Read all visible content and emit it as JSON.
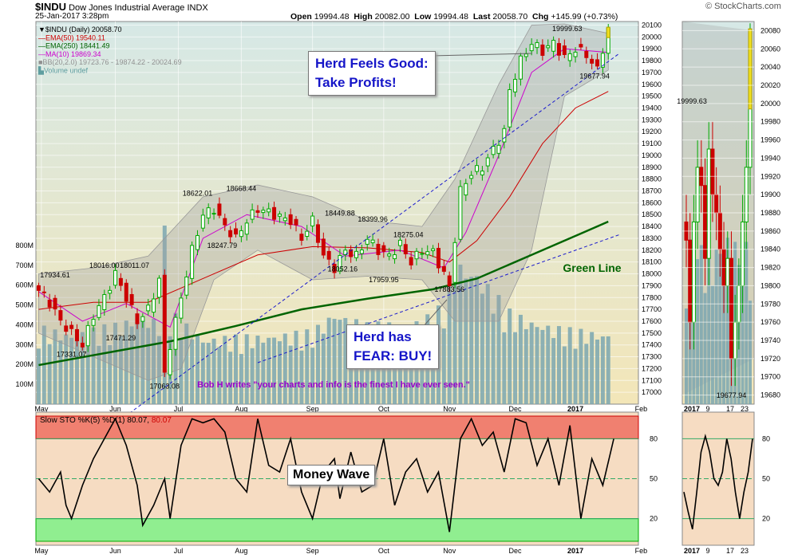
{
  "header": {
    "symbol": "$INDU",
    "name": "Dow Jones Industrial Average",
    "exchange": "INDX",
    "datetime": "25-Jan-2017 3:28pm",
    "open_label": "Open",
    "open": "19994.48",
    "high_label": "High",
    "high": "20082.00",
    "low_label": "Low",
    "low": "19994.48",
    "last_label": "Last",
    "last": "20058.70",
    "chg_label": "Chg",
    "chg": "+145.99 (+0.73%)",
    "source": "© StockCharts.com"
  },
  "legend": [
    {
      "text": "▼$INDU (Daily) 20058.70",
      "color": "#000000"
    },
    {
      "text": "—EMA(50) 19540.11",
      "color": "#cc0000"
    },
    {
      "text": "—EMA(250) 18441.49",
      "color": "#006400"
    },
    {
      "text": "—MA(10) 19869.34",
      "color": "#cc00cc"
    },
    {
      "text": "■BB(20,2.0) 19723.76 - 19874.22 - 20024.69",
      "color": "#909090"
    },
    {
      "text": "▙Volume undef",
      "color": "#5f9ea0"
    }
  ],
  "annotations": {
    "herd_good_line1": "Herd Feels Good:",
    "herd_good_line2": "Take Profits!",
    "herd_fear_line1": "Herd has",
    "herd_fear_line2": "FEAR: BUY!",
    "green_line": "Green Line",
    "money_wave": "Money Wave",
    "testimonial": "Bob H writes \"your charts and info is the finest I have ever seen.\""
  },
  "sto_legend": {
    "prefix": "Slow STO %K(5) %D(1) ",
    "k": "80.07",
    "d": "80.07"
  },
  "colors": {
    "up": "#00aa00",
    "down": "#cc0000",
    "ema50": "#cc0000",
    "ema250": "#006400",
    "ma10": "#cc00cc",
    "bb": "#909090",
    "volume": "#7aa6b0",
    "trend": "#1a1acc",
    "callout_text": "#1515c8",
    "testimonial": "#9900cc",
    "sto_overbought": "#f08070",
    "sto_oversold": "#90ee90"
  },
  "chart_data": {
    "type": "candlestick",
    "ylim": [
      16900,
      20130
    ],
    "y_ticks": [
      17000,
      17100,
      17200,
      17300,
      17400,
      17500,
      17600,
      17700,
      17800,
      17900,
      18000,
      18100,
      18200,
      18300,
      18400,
      18500,
      18600,
      18700,
      18800,
      18900,
      19000,
      19100,
      19200,
      19300,
      19400,
      19500,
      19600,
      19700,
      19800,
      19900,
      20000,
      20100
    ],
    "x_month_labels": [
      {
        "label": "May",
        "t": 0.5
      },
      {
        "label": "Jun",
        "t": 14
      },
      {
        "label": "Jul",
        "t": 25.5
      },
      {
        "label": "Aug",
        "t": 37
      },
      {
        "label": "Sep",
        "t": 50
      },
      {
        "label": "Oct",
        "t": 63
      },
      {
        "label": "Nov",
        "t": 75
      },
      {
        "label": "Dec",
        "t": 87
      },
      {
        "label": "2017",
        "t": 98,
        "bold": true
      },
      {
        "label": "Feb",
        "t": 110
      }
    ],
    "close_series": [
      [
        0,
        17860
      ],
      [
        2,
        17760
      ],
      [
        4,
        17600
      ],
      [
        6,
        17500
      ],
      [
        8,
        17400
      ],
      [
        10,
        17650
      ],
      [
        12,
        17800
      ],
      [
        14,
        18000
      ],
      [
        16,
        17800
      ],
      [
        18,
        17600
      ],
      [
        20,
        17700
      ],
      [
        22,
        17950
      ],
      [
        23,
        17150
      ],
      [
        24,
        17400
      ],
      [
        26,
        17800
      ],
      [
        28,
        18200
      ],
      [
        30,
        18500
      ],
      [
        32,
        18550
      ],
      [
        34,
        18400
      ],
      [
        36,
        18300
      ],
      [
        38,
        18450
      ],
      [
        40,
        18550
      ],
      [
        42,
        18520
      ],
      [
        44,
        18480
      ],
      [
        46,
        18450
      ],
      [
        48,
        18300
      ],
      [
        50,
        18450
      ],
      [
        52,
        18150
      ],
      [
        54,
        18050
      ],
      [
        56,
        18200
      ],
      [
        58,
        18150
      ],
      [
        60,
        18300
      ],
      [
        62,
        18200
      ],
      [
        64,
        18150
      ],
      [
        66,
        18250
      ],
      [
        68,
        18100
      ],
      [
        70,
        18200
      ],
      [
        72,
        18180
      ],
      [
        74,
        18000
      ],
      [
        75,
        17888
      ],
      [
        76,
        18300
      ],
      [
        77,
        18700
      ],
      [
        79,
        18850
      ],
      [
        81,
        18900
      ],
      [
        83,
        19050
      ],
      [
        85,
        19200
      ],
      [
        86,
        19550
      ],
      [
        88,
        19800
      ],
      [
        90,
        19950
      ],
      [
        92,
        19880
      ],
      [
        94,
        19950
      ],
      [
        96,
        19820
      ],
      [
        98,
        19900
      ],
      [
        100,
        19850
      ],
      [
        102,
        19720
      ],
      [
        103,
        19900
      ],
      [
        104,
        20058
      ]
    ],
    "ema50": [
      [
        0,
        17700
      ],
      [
        10,
        17760
      ],
      [
        20,
        17760
      ],
      [
        30,
        17960
      ],
      [
        40,
        18160
      ],
      [
        50,
        18230
      ],
      [
        60,
        18220
      ],
      [
        70,
        18180
      ],
      [
        75,
        18100
      ],
      [
        80,
        18280
      ],
      [
        86,
        18650
      ],
      [
        92,
        19100
      ],
      [
        98,
        19400
      ],
      [
        104,
        19540
      ]
    ],
    "ema250": [
      [
        0,
        17230
      ],
      [
        12,
        17330
      ],
      [
        24,
        17430
      ],
      [
        36,
        17560
      ],
      [
        48,
        17700
      ],
      [
        60,
        17790
      ],
      [
        72,
        17870
      ],
      [
        80,
        17960
      ],
      [
        90,
        18160
      ],
      [
        100,
        18360
      ],
      [
        104,
        18441
      ]
    ],
    "ma10": [
      [
        0,
        17850
      ],
      [
        8,
        17600
      ],
      [
        16,
        17750
      ],
      [
        22,
        17600
      ],
      [
        24,
        17550
      ],
      [
        30,
        18300
      ],
      [
        38,
        18500
      ],
      [
        48,
        18400
      ],
      [
        56,
        18150
      ],
      [
        66,
        18200
      ],
      [
        74,
        18050
      ],
      [
        78,
        18350
      ],
      [
        84,
        19000
      ],
      [
        90,
        19700
      ],
      [
        96,
        19900
      ],
      [
        104,
        19869
      ]
    ],
    "bb_upper": [
      [
        0,
        18000
      ],
      [
        10,
        18050
      ],
      [
        20,
        18150
      ],
      [
        30,
        18650
      ],
      [
        40,
        18750
      ],
      [
        50,
        18650
      ],
      [
        60,
        18450
      ],
      [
        70,
        18400
      ],
      [
        76,
        18800
      ],
      [
        84,
        19600
      ],
      [
        90,
        20100
      ],
      [
        96,
        20110
      ],
      [
        104,
        20030
      ]
    ],
    "bb_lower": [
      [
        0,
        17500
      ],
      [
        10,
        17300
      ],
      [
        20,
        17100
      ],
      [
        26,
        17200
      ],
      [
        32,
        17950
      ],
      [
        40,
        18200
      ],
      [
        50,
        17950
      ],
      [
        60,
        17980
      ],
      [
        70,
        17950
      ],
      [
        76,
        17600
      ],
      [
        84,
        17600
      ],
      [
        90,
        18200
      ],
      [
        96,
        19500
      ],
      [
        104,
        19720
      ]
    ],
    "trend_lines": [
      {
        "from": [
          10,
          16600
        ],
        "to": [
          106,
          19860
        ]
      },
      {
        "from": [
          40,
          17250
        ],
        "to": [
          106,
          18330
        ]
      }
    ],
    "price_labels": [
      {
        "text": "17934.61",
        "t": 3,
        "v": 17970
      },
      {
        "text": "18016.00",
        "t": 12,
        "v": 18050
      },
      {
        "text": "18011.07",
        "t": 17.5,
        "v": 18050
      },
      {
        "text": "17471.29",
        "t": 15,
        "v": 17440
      },
      {
        "text": "17331.07",
        "t": 6,
        "v": 17300
      },
      {
        "text": "17063.08",
        "t": 23,
        "v": 17030
      },
      {
        "text": "18622.01",
        "t": 29,
        "v": 18660
      },
      {
        "text": "18668.44",
        "t": 37,
        "v": 18700
      },
      {
        "text": "18247.79",
        "t": 33.5,
        "v": 18220
      },
      {
        "text": "18449.88",
        "t": 55,
        "v": 18490
      },
      {
        "text": "18399.96",
        "t": 61,
        "v": 18440
      },
      {
        "text": "18275.04",
        "t": 67.5,
        "v": 18310
      },
      {
        "text": "18052.16",
        "t": 55.5,
        "v": 18020
      },
      {
        "text": "17959.95",
        "t": 63,
        "v": 17930
      },
      {
        "text": "17883.56",
        "t": 75,
        "v": 17850
      },
      {
        "text": "19999.63",
        "t": 96.5,
        "v": 20050
      },
      {
        "text": "19677.94",
        "t": 101.5,
        "v": 19650
      }
    ],
    "volume": {
      "y_ticks": [
        {
          "label": "100M",
          "v": 100
        },
        {
          "label": "200M",
          "v": 200
        },
        {
          "label": "300M",
          "v": 300
        },
        {
          "label": "400M",
          "v": 400
        },
        {
          "label": "500M",
          "v": 500
        },
        {
          "label": "600M",
          "v": 600
        },
        {
          "label": "700M",
          "v": 700
        },
        {
          "label": "800M",
          "v": 800
        }
      ],
      "levels": [
        [
          0,
          350
        ],
        [
          6,
          320
        ],
        [
          10,
          340
        ],
        [
          14,
          360
        ],
        [
          18,
          400
        ],
        [
          22,
          380
        ],
        [
          23,
          900
        ],
        [
          24,
          420
        ],
        [
          30,
          300
        ],
        [
          40,
          310
        ],
        [
          50,
          330
        ],
        [
          54,
          420
        ],
        [
          60,
          360
        ],
        [
          70,
          380
        ],
        [
          74,
          450
        ],
        [
          76,
          650
        ],
        [
          80,
          600
        ],
        [
          86,
          420
        ],
        [
          90,
          380
        ],
        [
          96,
          340
        ],
        [
          104,
          320
        ]
      ]
    },
    "stochastic": {
      "k_label": "%K(5)",
      "d_label": "%D(1)",
      "levels": [
        20,
        50,
        80
      ],
      "k": [
        [
          0,
          50
        ],
        [
          2,
          40
        ],
        [
          4,
          55
        ],
        [
          5,
          30
        ],
        [
          6,
          20
        ],
        [
          8,
          45
        ],
        [
          10,
          65
        ],
        [
          12,
          80
        ],
        [
          14,
          95
        ],
        [
          16,
          75
        ],
        [
          18,
          45
        ],
        [
          19,
          15
        ],
        [
          21,
          30
        ],
        [
          23,
          50
        ],
        [
          24,
          20
        ],
        [
          26,
          75
        ],
        [
          28,
          95
        ],
        [
          30,
          92
        ],
        [
          32,
          95
        ],
        [
          34,
          85
        ],
        [
          36,
          50
        ],
        [
          38,
          40
        ],
        [
          40,
          95
        ],
        [
          42,
          60
        ],
        [
          44,
          55
        ],
        [
          46,
          80
        ],
        [
          48,
          40
        ],
        [
          50,
          20
        ],
        [
          52,
          55
        ],
        [
          54,
          65
        ],
        [
          55,
          35
        ],
        [
          57,
          70
        ],
        [
          59,
          40
        ],
        [
          61,
          45
        ],
        [
          63,
          80
        ],
        [
          65,
          30
        ],
        [
          67,
          55
        ],
        [
          69,
          65
        ],
        [
          71,
          40
        ],
        [
          73,
          55
        ],
        [
          75,
          10
        ],
        [
          77,
          80
        ],
        [
          79,
          95
        ],
        [
          81,
          75
        ],
        [
          83,
          85
        ],
        [
          85,
          55
        ],
        [
          87,
          95
        ],
        [
          89,
          92
        ],
        [
          91,
          60
        ],
        [
          93,
          80
        ],
        [
          95,
          45
        ],
        [
          97,
          90
        ],
        [
          99,
          20
        ],
        [
          101,
          65
        ],
        [
          103,
          45
        ],
        [
          105,
          80
        ]
      ],
      "sub_k": [
        [
          0,
          40
        ],
        [
          1,
          25
        ],
        [
          2,
          12
        ],
        [
          3,
          40
        ],
        [
          4,
          70
        ],
        [
          5,
          82
        ],
        [
          6,
          70
        ],
        [
          7,
          50
        ],
        [
          8,
          45
        ],
        [
          9,
          55
        ],
        [
          10,
          80
        ],
        [
          11,
          65
        ],
        [
          12,
          40
        ],
        [
          13,
          20
        ],
        [
          14,
          40
        ],
        [
          15,
          55
        ],
        [
          16,
          80
        ]
      ],
      "sub_x_labels": [
        "2017",
        "9",
        "17",
        "23"
      ]
    },
    "sub_ylim": [
      19670,
      20090
    ],
    "sub_y_ticks": [
      19680,
      19700,
      19720,
      19740,
      19760,
      19780,
      19800,
      19820,
      19840,
      19860,
      19880,
      19900,
      19920,
      19940,
      19960,
      19980,
      20000,
      20020,
      20040,
      20060,
      20080
    ],
    "sub_labels": [
      {
        "text": "19999.63",
        "t": 1.5,
        "v": 20000
      },
      {
        "text": "19677.94",
        "t": 12,
        "v": 19677
      }
    ]
  }
}
